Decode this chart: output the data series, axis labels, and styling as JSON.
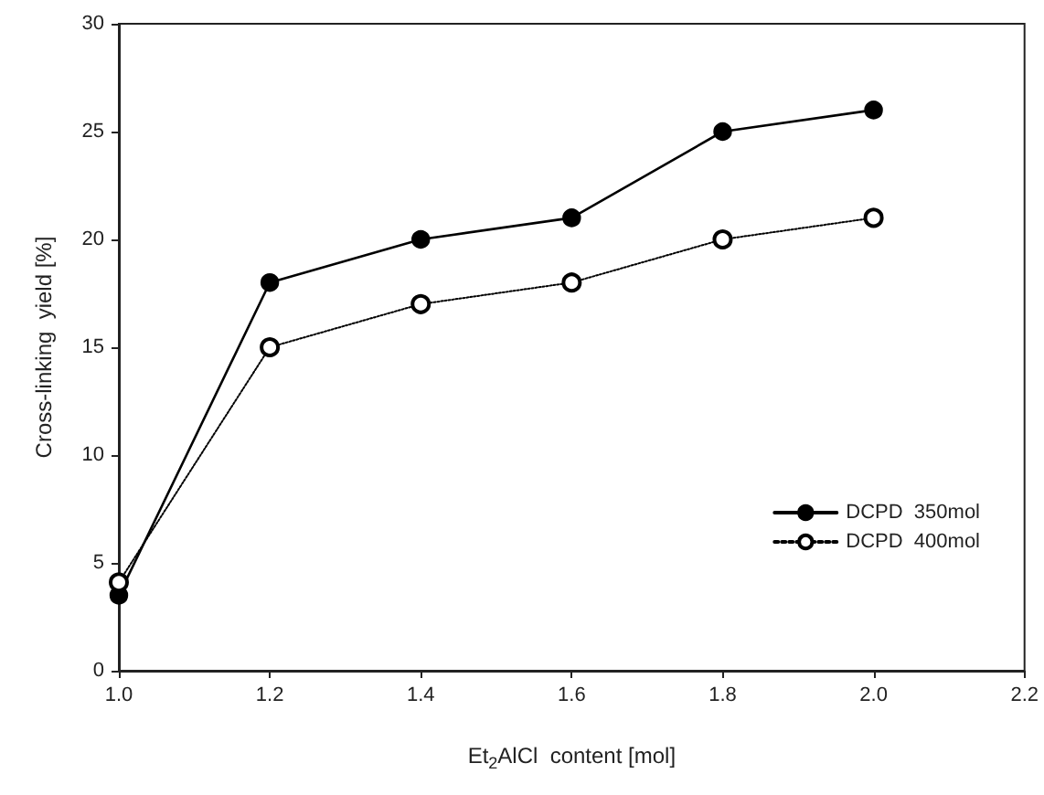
{
  "chart_data": {
    "type": "line",
    "xlabel": "Et$_{2}$AlCl  content [mol]",
    "ylabel": "Cross-linking  yield [%]",
    "x": [
      1.0,
      1.2,
      1.4,
      1.6,
      1.8,
      2.0
    ],
    "series": [
      {
        "name": "DCPD  350mol",
        "color": "#000000",
        "values": [
          3.5,
          18,
          20,
          21,
          25,
          26
        ],
        "marker": "circle",
        "line_style": "solid"
      },
      {
        "name": "DCPD  400mol",
        "color": "#000000",
        "values": [
          4.1,
          15,
          17,
          18,
          20,
          21
        ],
        "marker": "open circle",
        "line_style": "dotted"
      }
    ],
    "xlim": [
      1.0,
      2.2
    ],
    "xticks": [
      {
        "value": 1.0,
        "label": "1.0"
      },
      {
        "value": 1.2,
        "label": "1.2"
      },
      {
        "value": 1.4,
        "label": "1.4"
      },
      {
        "value": 1.6,
        "label": "1.6"
      },
      {
        "value": 1.8,
        "label": "1.8"
      },
      {
        "value": 2.0,
        "label": "2.0"
      },
      {
        "value": 2.2,
        "label": "2.2"
      }
    ],
    "ylim": [
      0,
      30
    ],
    "yticks": [
      0,
      5,
      10,
      15,
      20,
      25,
      30
    ],
    "grid": false,
    "legend": "right"
  }
}
